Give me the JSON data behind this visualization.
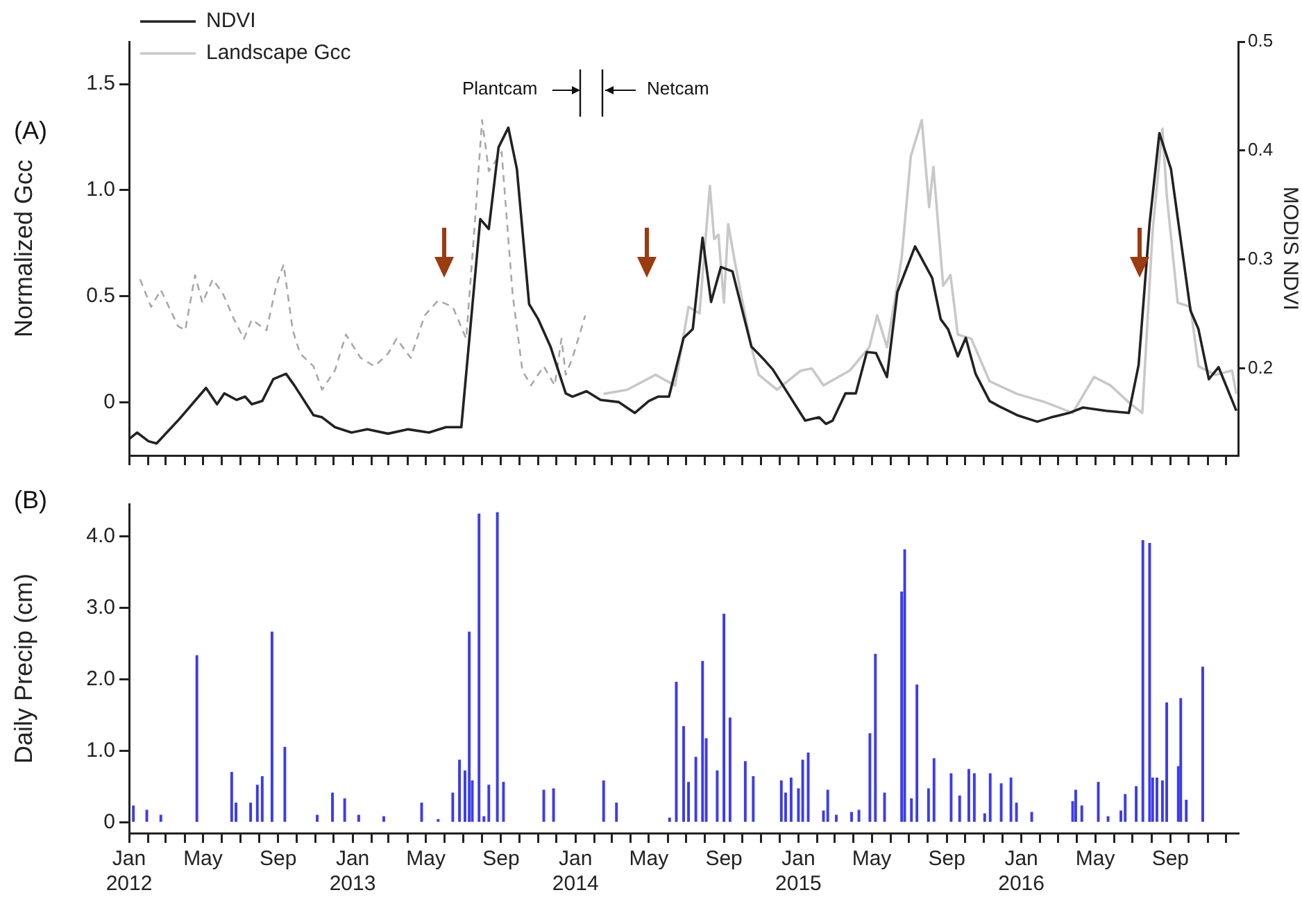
{
  "chart_data": [
    {
      "type": "line",
      "ylabel": "Normalized Gcc",
      "y2label": "MODIS NDVI",
      "annotations": [
        "(A)",
        "Plantcam",
        "Netcam"
      ],
      "legend": "top left",
      "tick_labels": "y",
      "xlim": [
        "2012-01-01",
        "2016-12-21"
      ],
      "ylim": [
        -0.25,
        1.7
      ],
      "yticks": [
        0,
        0.5,
        {
          "value": 1,
          "label": "1.0"
        },
        1.5
      ],
      "y2lim": [
        0.12,
        0.5
      ],
      "y2ticks": [
        0.2,
        0.3,
        0.4,
        0.5
      ],
      "xticks": [
        {
          "value": "2012-01",
          "label": null
        },
        {
          "value": "2012-02",
          "label": null
        },
        {
          "value": "2012-03",
          "label": null
        },
        {
          "value": "2012-04",
          "label": null
        },
        {
          "value": "2012-05",
          "label": null
        },
        {
          "value": "2012-06",
          "label": null
        },
        {
          "value": "2012-07",
          "label": null
        },
        {
          "value": "2012-08",
          "label": null
        },
        {
          "value": "2012-09",
          "label": null
        },
        {
          "value": "2012-10",
          "label": null
        },
        {
          "value": "2012-11",
          "label": null
        },
        {
          "value": "2012-12",
          "label": null
        },
        {
          "value": "2013-01",
          "label": null
        },
        {
          "value": "2013-02",
          "label": null
        },
        {
          "value": "2013-03",
          "label": null
        },
        {
          "value": "2013-04",
          "label": null
        },
        {
          "value": "2013-05",
          "label": null
        },
        {
          "value": "2013-06",
          "label": null
        },
        {
          "value": "2013-07",
          "label": null
        },
        {
          "value": "2013-08",
          "label": null
        },
        {
          "value": "2013-09",
          "label": null
        },
        {
          "value": "2013-10",
          "label": null
        },
        {
          "value": "2013-11",
          "label": null
        },
        {
          "value": "2013-12",
          "label": null
        },
        {
          "value": "2014-01",
          "label": null
        },
        {
          "value": "2014-02",
          "label": null
        },
        {
          "value": "2014-03",
          "label": null
        },
        {
          "value": "2014-04",
          "label": null
        },
        {
          "value": "2014-05",
          "label": null
        },
        {
          "value": "2014-06",
          "label": null
        },
        {
          "value": "2014-07",
          "label": null
        },
        {
          "value": "2014-08",
          "label": null
        },
        {
          "value": "2014-09",
          "label": null
        },
        {
          "value": "2014-10",
          "label": null
        },
        {
          "value": "2014-11",
          "label": null
        },
        {
          "value": "2014-12",
          "label": null
        },
        {
          "value": "2015-01",
          "label": null
        },
        {
          "value": "2015-02",
          "label": null
        },
        {
          "value": "2015-03",
          "label": null
        },
        {
          "value": "2015-04",
          "label": null
        },
        {
          "value": "2015-05",
          "label": null
        },
        {
          "value": "2015-06",
          "label": null
        },
        {
          "value": "2015-07",
          "label": null
        },
        {
          "value": "2015-08",
          "label": null
        },
        {
          "value": "2015-09",
          "label": null
        },
        {
          "value": "2015-10",
          "label": null
        },
        {
          "value": "2015-11",
          "label": null
        },
        {
          "value": "2015-12",
          "label": null
        },
        {
          "value": "2016-01",
          "label": null
        },
        {
          "value": "2016-02",
          "label": null
        },
        {
          "value": "2016-03",
          "label": null
        },
        {
          "value": "2016-04",
          "label": null
        },
        {
          "value": "2016-05",
          "label": null
        },
        {
          "value": "2016-06",
          "label": null
        },
        {
          "value": "2016-07",
          "label": null
        },
        {
          "value": "2016-08",
          "label": null
        },
        {
          "value": "2016-09",
          "label": null
        },
        {
          "value": "2016-10",
          "label": null
        },
        {
          "value": "2016-11",
          "label": null
        },
        {
          "value": "2016-12",
          "label": null
        }
      ],
      "series": [
        {
          "name": "NDVI",
          "color": "#222222",
          "axis": "y2",
          "x": [
            "2012-01-01",
            "2012-01-14",
            "2012-02-02",
            "2012-02-15",
            "2012-03-21",
            "2012-05-06",
            "2012-05-24",
            "2012-06-05",
            "2012-06-25",
            "2012-07-09",
            "2012-07-20",
            "2012-08-06",
            "2012-08-24",
            "2012-09-14",
            "2012-09-28",
            "2012-10-29",
            "2012-11-12",
            "2012-12-03",
            "2012-12-30",
            "2013-01-25",
            "2013-02-28",
            "2013-04-02",
            "2013-05-06",
            "2013-06-03",
            "2013-06-28",
            "2013-07-29",
            "2013-08-12",
            "2013-08-28",
            "2013-09-13",
            "2013-09-27",
            "2013-10-17",
            "2013-11-01",
            "2013-11-21",
            "2013-12-16",
            "2013-12-27",
            "2014-01-19",
            "2014-02-11",
            "2014-03-13",
            "2014-04-08",
            "2014-05-01",
            "2014-05-16",
            "2014-06-03",
            "2014-06-27",
            "2014-07-12",
            "2014-07-28",
            "2014-08-11",
            "2014-08-27",
            "2014-09-15",
            "2014-10-16",
            "2014-11-04",
            "2014-11-20",
            "2015-01-12",
            "2015-02-04",
            "2015-02-15",
            "2015-02-26",
            "2015-03-19",
            "2015-04-05",
            "2015-04-23",
            "2015-05-08",
            "2015-05-26",
            "2015-06-12",
            "2015-07-11",
            "2015-08-08",
            "2015-08-22",
            "2015-09-03",
            "2015-09-19",
            "2015-10-02",
            "2015-10-18",
            "2015-11-10",
            "2015-11-26",
            "2015-12-25",
            "2016-01-27",
            "2016-02-19",
            "2016-03-19",
            "2016-04-11",
            "2016-05-19",
            "2016-06-25",
            "2016-07-11",
            "2016-07-29",
            "2016-08-14",
            "2016-09-02",
            "2016-10-04",
            "2016-10-17",
            "2016-11-03",
            "2016-11-19",
            "2016-12-18"
          ],
          "values": [
            0.135,
            0.141,
            0.133,
            0.131,
            0.152,
            0.182,
            0.167,
            0.177,
            0.171,
            0.174,
            0.167,
            0.17,
            0.19,
            0.195,
            0.184,
            0.157,
            0.155,
            0.146,
            0.141,
            0.144,
            0.14,
            0.144,
            0.141,
            0.146,
            0.146,
            0.337,
            0.328,
            0.403,
            0.421,
            0.383,
            0.259,
            0.245,
            0.22,
            0.177,
            0.174,
            0.179,
            0.171,
            0.169,
            0.159,
            0.17,
            0.174,
            0.174,
            0.228,
            0.236,
            0.32,
            0.261,
            0.293,
            0.289,
            0.22,
            0.209,
            0.199,
            0.152,
            0.155,
            0.149,
            0.152,
            0.177,
            0.177,
            0.215,
            0.214,
            0.192,
            0.27,
            0.312,
            0.283,
            0.245,
            0.236,
            0.211,
            0.228,
            0.195,
            0.17,
            0.165,
            0.157,
            0.151,
            0.155,
            0.159,
            0.164,
            0.161,
            0.159,
            0.203,
            0.333,
            0.416,
            0.383,
            0.253,
            0.236,
            0.19,
            0.201,
            0.161
          ]
        },
        {
          "name": "Landscape Gcc",
          "color": "#c8c8c8",
          "x": [
            "2014-02-16",
            "2014-03-27",
            "2014-05-12",
            "2014-06-13",
            "2014-07-05",
            "2014-07-23",
            "2014-08-09",
            "2014-08-16",
            "2014-08-23",
            "2014-09-01",
            "2014-09-08",
            "2014-09-19",
            "2014-10-16",
            "2014-10-28",
            "2014-11-27",
            "2015-01-05",
            "2015-01-23",
            "2015-02-11",
            "2015-03-26",
            "2015-04-27",
            "2015-05-10",
            "2015-05-26",
            "2015-06-19",
            "2015-07-04",
            "2015-07-22",
            "2015-08-03",
            "2015-08-10",
            "2015-08-26",
            "2015-09-07",
            "2015-09-19",
            "2015-10-11",
            "2015-11-10",
            "2015-12-25",
            "2016-02-10",
            "2016-03-25",
            "2016-04-29",
            "2016-05-26",
            "2016-06-25",
            "2016-07-17",
            "2016-08-03",
            "2016-08-19",
            "2016-08-26",
            "2016-09-13",
            "2016-10-04",
            "2016-10-17",
            "2016-11-14",
            "2016-12-11",
            "2016-12-18"
          ],
          "values": [
            0.04,
            0.06,
            0.13,
            0.08,
            0.45,
            0.42,
            1.02,
            0.77,
            0.79,
            0.47,
            0.84,
            0.66,
            0.26,
            0.13,
            0.06,
            0.15,
            0.16,
            0.08,
            0.15,
            0.26,
            0.41,
            0.26,
            0.68,
            1.16,
            1.33,
            0.92,
            1.11,
            0.55,
            0.6,
            0.32,
            0.3,
            0.1,
            0.04,
            0,
            -0.05,
            0.12,
            0.08,
            0,
            -0.05,
            0.81,
            1.29,
            0.98,
            0.47,
            0.45,
            0.17,
            0.13,
            0.15,
            0.04
          ]
        },
        {
          "color": "#a8a8a8",
          "line_style": "dashed",
          "x": [
            "2012-01-19",
            "2012-02-06",
            "2012-02-22",
            "2012-03-21",
            "2012-04-02",
            "2012-04-18",
            "2012-04-30",
            "2012-05-17",
            "2012-06-03",
            "2012-06-21",
            "2012-07-07",
            "2012-07-20",
            "2012-08-13",
            "2012-08-29",
            "2012-09-10",
            "2012-09-25",
            "2012-10-07",
            "2012-10-29",
            "2012-11-12",
            "2012-12-03",
            "2012-12-21",
            "2013-01-14",
            "2013-02-06",
            "2013-02-28",
            "2013-03-14",
            "2013-04-06",
            "2013-04-29",
            "2013-05-21",
            "2013-06-14",
            "2013-07-06",
            "2013-07-20",
            "2013-08-01",
            "2013-08-12",
            "2013-09-02",
            "2013-09-20",
            "2013-10-06",
            "2013-10-20",
            "2013-11-10",
            "2013-11-28",
            "2013-12-09",
            "2013-12-16",
            "2013-12-27",
            "2014-01-17"
          ],
          "values": [
            0.58,
            0.45,
            0.53,
            0.36,
            0.34,
            0.6,
            0.47,
            0.58,
            0.51,
            0.39,
            0.3,
            0.39,
            0.34,
            0.55,
            0.65,
            0.34,
            0.23,
            0.17,
            0.06,
            0.15,
            0.32,
            0.21,
            0.17,
            0.23,
            0.3,
            0.21,
            0.41,
            0.48,
            0.45,
            0.3,
            0.84,
            1.33,
            1.09,
            1.18,
            0.51,
            0.15,
            0.08,
            0.17,
            0.08,
            0.3,
            0.13,
            0.21,
            0.41
          ]
        }
      ]
    },
    {
      "type": "bar",
      "ylabel": "Daily Precip (cm)",
      "annotations": [
        "(B)"
      ],
      "xlim": [
        "2012-01-01",
        "2016-12-21"
      ],
      "ylim": [
        -0.15,
        4.45
      ],
      "yticks": [
        0,
        {
          "value": 1,
          "label": "1.0"
        },
        {
          "value": 2,
          "label": "2.0"
        },
        {
          "value": 3,
          "label": "3.0"
        },
        {
          "value": 4,
          "label": "4.0"
        }
      ],
      "xticks": [
        {
          "value": "2012-01",
          "label": "Jan\n2012"
        },
        {
          "value": "2012-02",
          "label": null
        },
        {
          "value": "2012-03",
          "label": null
        },
        {
          "value": "2012-04",
          "label": null
        },
        {
          "value": "2012-05",
          "label": "May"
        },
        {
          "value": "2012-06",
          "label": null
        },
        {
          "value": "2012-07",
          "label": null
        },
        {
          "value": "2012-08",
          "label": null
        },
        {
          "value": "2012-09",
          "label": "Sep"
        },
        {
          "value": "2012-10",
          "label": null
        },
        {
          "value": "2012-11",
          "label": null
        },
        {
          "value": "2012-12",
          "label": null
        },
        {
          "value": "2013-01",
          "label": "Jan\n2013"
        },
        {
          "value": "2013-02",
          "label": null
        },
        {
          "value": "2013-03",
          "label": null
        },
        {
          "value": "2013-04",
          "label": null
        },
        {
          "value": "2013-05",
          "label": "May"
        },
        {
          "value": "2013-06",
          "label": null
        },
        {
          "value": "2013-07",
          "label": null
        },
        {
          "value": "2013-08",
          "label": null
        },
        {
          "value": "2013-09",
          "label": "Sep"
        },
        {
          "value": "2013-10",
          "label": null
        },
        {
          "value": "2013-11",
          "label": null
        },
        {
          "value": "2013-12",
          "label": null
        },
        {
          "value": "2014-01",
          "label": "Jan\n2014"
        },
        {
          "value": "2014-02",
          "label": null
        },
        {
          "value": "2014-03",
          "label": null
        },
        {
          "value": "2014-04",
          "label": null
        },
        {
          "value": "2014-05",
          "label": "May"
        },
        {
          "value": "2014-06",
          "label": null
        },
        {
          "value": "2014-07",
          "label": null
        },
        {
          "value": "2014-08",
          "label": null
        },
        {
          "value": "2014-09",
          "label": "Sep"
        },
        {
          "value": "2014-10",
          "label": null
        },
        {
          "value": "2014-11",
          "label": null
        },
        {
          "value": "2014-12",
          "label": null
        },
        {
          "value": "2015-01",
          "label": "Jan\n2015"
        },
        {
          "value": "2015-02",
          "label": null
        },
        {
          "value": "2015-03",
          "label": null
        },
        {
          "value": "2015-04",
          "label": null
        },
        {
          "value": "2015-05",
          "label": "May"
        },
        {
          "value": "2015-06",
          "label": null
        },
        {
          "value": "2015-07",
          "label": null
        },
        {
          "value": "2015-08",
          "label": null
        },
        {
          "value": "2015-09",
          "label": "Sep"
        },
        {
          "value": "2015-10",
          "label": null
        },
        {
          "value": "2015-11",
          "label": null
        },
        {
          "value": "2015-12",
          "label": null
        },
        {
          "value": "2016-01",
          "label": "Jan\n2016"
        },
        {
          "value": "2016-02",
          "label": null
        },
        {
          "value": "2016-03",
          "label": null
        },
        {
          "value": "2016-04",
          "label": null
        },
        {
          "value": "2016-05",
          "label": "May"
        },
        {
          "value": "2016-06",
          "label": null
        },
        {
          "value": "2016-07",
          "label": null
        },
        {
          "value": "2016-08",
          "label": null
        },
        {
          "value": "2016-09",
          "label": "Sep"
        },
        {
          "value": "2016-10",
          "label": null
        },
        {
          "value": "2016-11",
          "label": null
        },
        {
          "value": "2016-12",
          "label": null
        }
      ],
      "series": [
        {
          "color": "#3b3bf0",
          "x": [
            "2012-01-08",
            "2012-01-30",
            "2012-02-22",
            "2012-04-21",
            "2012-06-17",
            "2012-06-24",
            "2012-07-18",
            "2012-07-29",
            "2012-08-06",
            "2012-08-22",
            "2012-09-12",
            "2012-11-04",
            "2012-11-29",
            "2012-12-19",
            "2013-01-11",
            "2013-02-21",
            "2013-04-24",
            "2013-05-21",
            "2013-06-14",
            "2013-06-25",
            "2013-07-04",
            "2013-07-11",
            "2013-07-16",
            "2013-07-27",
            "2013-08-04",
            "2013-08-12",
            "2013-08-26",
            "2013-09-05",
            "2013-11-10",
            "2013-11-26",
            "2014-02-16",
            "2014-03-09",
            "2014-06-04",
            "2014-06-15",
            "2014-06-27",
            "2014-07-05",
            "2014-07-17",
            "2014-07-28",
            "2014-08-03",
            "2014-08-21",
            "2014-09-01",
            "2014-09-11",
            "2014-10-06",
            "2014-10-19",
            "2014-12-04",
            "2014-12-11",
            "2014-12-20",
            "2015-01-01",
            "2015-01-08",
            "2015-01-17",
            "2015-02-11",
            "2015-02-18",
            "2015-03-04",
            "2015-03-29",
            "2015-04-10",
            "2015-04-28",
            "2015-05-07",
            "2015-05-22",
            "2015-06-19",
            "2015-06-24",
            "2015-07-05",
            "2015-07-14",
            "2015-08-02",
            "2015-08-11",
            "2015-09-08",
            "2015-09-22",
            "2015-10-07",
            "2015-10-16",
            "2015-11-02",
            "2015-11-11",
            "2015-11-29",
            "2015-12-15",
            "2015-12-24",
            "2016-01-18",
            "2016-03-25",
            "2016-03-30",
            "2016-04-09",
            "2016-05-06",
            "2016-05-22",
            "2016-06-12",
            "2016-06-19",
            "2016-07-07",
            "2016-07-18",
            "2016-07-29",
            "2016-08-03",
            "2016-08-10",
            "2016-08-19",
            "2016-08-26",
            "2016-09-14",
            "2016-09-18",
            "2016-09-27",
            "2016-10-24"
          ],
          "values": [
            0.23,
            0.17,
            0.1,
            2.33,
            0.7,
            0.27,
            0.27,
            0.52,
            0.64,
            2.66,
            1.05,
            0.1,
            0.41,
            0.33,
            0.1,
            0.08,
            0.27,
            0.04,
            0.41,
            0.87,
            0.72,
            2.66,
            0.58,
            4.31,
            0.08,
            0.52,
            4.33,
            0.56,
            0.45,
            0.47,
            0.58,
            0.27,
            0.06,
            1.96,
            1.34,
            0.56,
            0.91,
            2.25,
            1.17,
            0.72,
            2.91,
            1.46,
            0.85,
            0.64,
            0.58,
            0.41,
            0.62,
            0.47,
            0.87,
            0.97,
            0.16,
            0.45,
            0.1,
            0.14,
            0.17,
            1.24,
            2.35,
            0.41,
            3.22,
            3.81,
            0.33,
            1.92,
            0.47,
            0.89,
            0.68,
            0.37,
            0.74,
            0.68,
            0.12,
            0.68,
            0.54,
            0.62,
            0.27,
            0.14,
            0.29,
            0.45,
            0.23,
            0.56,
            0.08,
            0.16,
            0.39,
            0.5,
            3.94,
            3.9,
            0.62,
            0.62,
            0.58,
            1.67,
            0.78,
            1.73,
            0.31,
            2.17
          ]
        }
      ]
    }
  ]
}
